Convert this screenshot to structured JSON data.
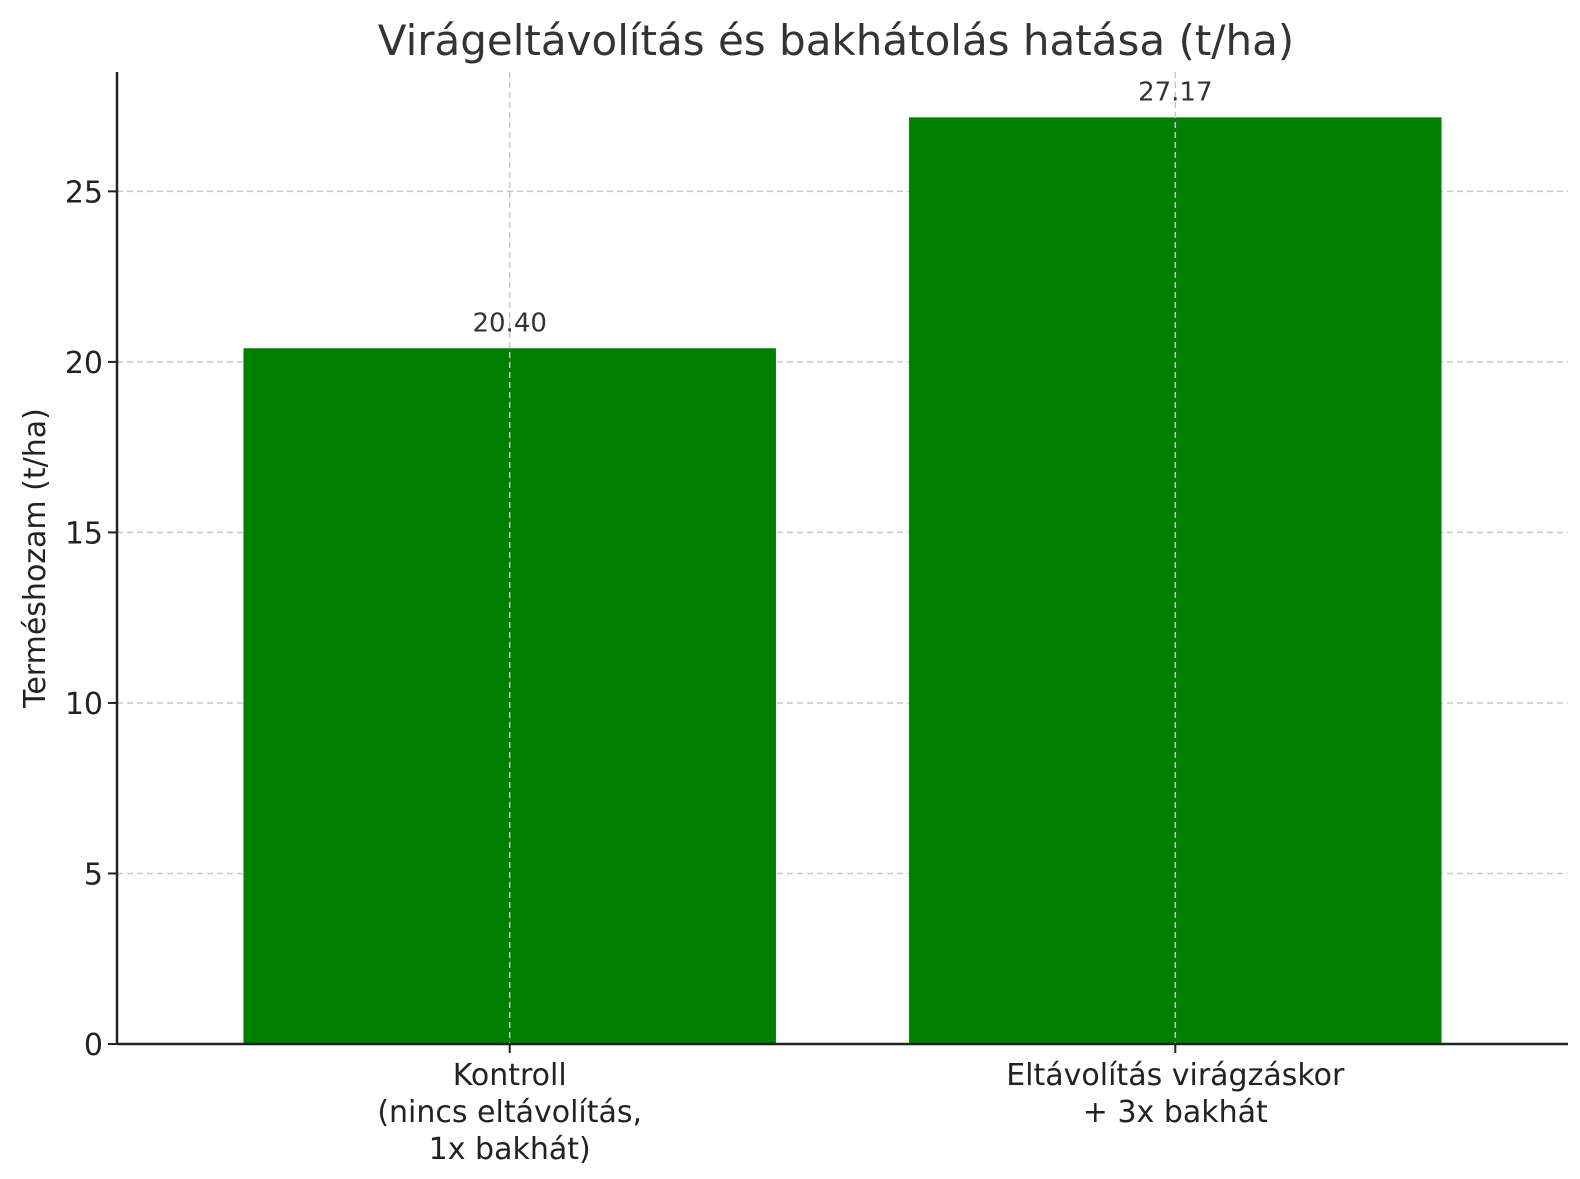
{
  "chart_data": {
    "type": "bar",
    "title": "Virágeltávolítás és bakhátolás hatása (t/ha)",
    "xlabel": "",
    "ylabel": "Terméshozam (t/ha)",
    "categories": [
      [
        "Kontroll",
        "(nincs eltávolítás,",
        "1x bakhát)"
      ],
      [
        "Eltávolítás virágzáskor",
        "+ 3x bakhát"
      ]
    ],
    "values": [
      20.4,
      27.17
    ],
    "value_labels": [
      "20.40",
      "27.17"
    ],
    "ylim": [
      0,
      28.5
    ],
    "yticks": [
      0,
      5,
      10,
      15,
      20,
      25
    ],
    "grid": true,
    "bar_color": "#008000"
  }
}
